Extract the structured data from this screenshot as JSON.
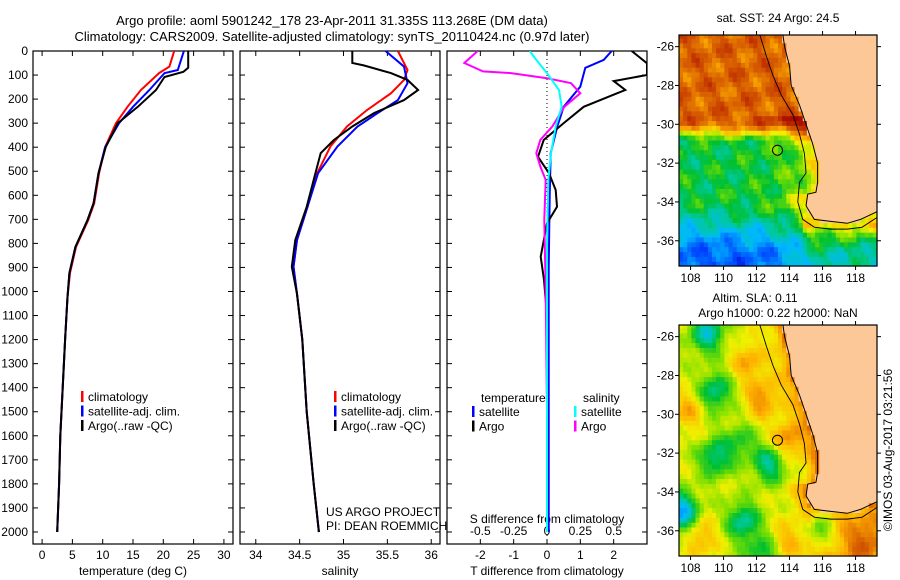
{
  "title": {
    "line1": "Argo profile: aoml 5901242_178 23-Apr-2011 31.335S 113.268E (DM data)",
    "line2": "Climatology: CARS2009. Satellite-adjusted climatology: synTS_20110424.nc (0.97d later)"
  },
  "depth_axis": {
    "ticks": [
      0,
      100,
      200,
      300,
      400,
      500,
      600,
      700,
      800,
      900,
      1000,
      1100,
      1200,
      1300,
      1400,
      1500,
      1600,
      1700,
      1800,
      1900,
      2000
    ],
    "ylim": [
      2050,
      0
    ]
  },
  "chart_data": [
    {
      "type": "line",
      "name": "temperature-profile",
      "xlabel": "temperature (deg C)",
      "xlim": [
        -1.5,
        31.5
      ],
      "xticks": [
        0,
        5,
        10,
        15,
        20,
        25,
        30
      ],
      "legend": [
        "climatology",
        "satellite-adj. clim.",
        "Argo(..raw -QC)"
      ],
      "series": [
        {
          "name": "climatology",
          "color": "#ff0000",
          "depth": [
            0,
            65,
            92,
            162,
            232,
            300,
            400,
            508,
            633,
            703,
            815,
            923,
            1023,
            1200,
            1400,
            1600,
            1800,
            2000
          ],
          "values": [
            21.8,
            21,
            19.3,
            16.3,
            14.1,
            12.2,
            10.4,
            9.4,
            8.6,
            7.6,
            5.6,
            4.6,
            4.2,
            3.8,
            3.4,
            3.0,
            2.8,
            2.5
          ]
        },
        {
          "name": "satellite-adj. clim.",
          "color": "#0000ff",
          "depth": [
            0,
            79,
            92,
            162,
            232,
            300,
            400,
            508,
            633,
            703,
            815,
            923,
            1023,
            1200,
            1400,
            1600,
            1800,
            2000
          ],
          "values": [
            23.4,
            22.4,
            20.2,
            17.7,
            15,
            12.7,
            10.4,
            9.3,
            8.5,
            7.5,
            5.5,
            4.5,
            4.2,
            3.8,
            3.4,
            3.0,
            2.8,
            2.5
          ]
        },
        {
          "name": "Argo(..raw -QC)",
          "color": "#000000",
          "depth": [
            0,
            50,
            70,
            87,
            108,
            162,
            232,
            300,
            400,
            508,
            633,
            703,
            815,
            923,
            1023,
            1200,
            1400,
            1600,
            1800,
            2000
          ],
          "values": [
            24.1,
            24.1,
            24.1,
            23.3,
            20.2,
            18.8,
            15.8,
            12.5,
            10.5,
            9.3,
            8.5,
            7.5,
            5.5,
            4.5,
            4.2,
            3.8,
            3.4,
            3.0,
            2.8,
            2.5
          ]
        }
      ]
    },
    {
      "type": "line",
      "name": "salinity-profile",
      "xlabel": "salinity",
      "xlim": [
        33.82,
        36.1
      ],
      "xticks": [
        34,
        34.5,
        35,
        35.5,
        36
      ],
      "legend": [
        "climatology",
        "satellite-adj. clim.",
        "Argo(..raw -QC)"
      ],
      "annotation": [
        "US ARGO PROJECT",
        "PI: DEAN ROEMMICH"
      ],
      "series": [
        {
          "name": "climatology",
          "color": "#ff0000",
          "depth": [
            0,
            79,
            120,
            176,
            245,
            314,
            397,
            508,
            648,
            786,
            897,
            1010,
            1200,
            1500,
            1800,
            2000
          ],
          "values": [
            35.62,
            35.73,
            35.69,
            35.54,
            35.27,
            35.04,
            34.85,
            34.7,
            34.59,
            34.47,
            34.43,
            34.47,
            34.53,
            34.58,
            34.66,
            34.72
          ]
        },
        {
          "name": "satellite-adj. clim.",
          "color": "#0000ff",
          "depth": [
            0,
            65,
            134,
            204,
            258,
            314,
            397,
            508,
            648,
            786,
            897,
            1010,
            1200,
            1500,
            1800,
            2000
          ],
          "values": [
            35.48,
            35.69,
            35.73,
            35.62,
            35.39,
            35.16,
            34.93,
            34.71,
            34.59,
            34.47,
            34.43,
            34.47,
            34.53,
            34.58,
            34.66,
            34.72
          ]
        },
        {
          "name": "Argo(..raw -QC)",
          "color": "#000000",
          "depth": [
            0,
            50,
            60,
            92,
            120,
            162,
            204,
            258,
            314,
            370,
            425,
            508,
            648,
            786,
            897,
            1010,
            1200,
            1500,
            1800,
            2000
          ],
          "values": [
            35.1,
            35.1,
            35.23,
            35.54,
            35.73,
            35.85,
            35.69,
            35.35,
            35.1,
            34.89,
            34.74,
            34.68,
            34.58,
            34.45,
            34.41,
            34.47,
            34.53,
            34.58,
            34.66,
            34.72
          ]
        }
      ]
    },
    {
      "type": "line",
      "name": "difference-profile",
      "xlabel": "T difference from climatology",
      "xlabel2": "S difference from climatology",
      "xlim": [
        -3,
        3
      ],
      "xticks": [
        -2,
        -1,
        0,
        1,
        2
      ],
      "s_xticks": [
        "-0.5",
        "-0.25",
        "0",
        "0.25",
        "0.5"
      ],
      "s_scale": 0.25,
      "legend_groups": [
        {
          "title": "temperature",
          "items": [
            {
              "label": "satellite",
              "color": "#0000ff"
            },
            {
              "label": "Argo",
              "color": "#000000"
            }
          ]
        },
        {
          "title": "salinity",
          "items": [
            {
              "label": "satellite",
              "color": "#00ffff"
            },
            {
              "label": "Argo",
              "color": "#ff00ff"
            }
          ]
        }
      ],
      "series": [
        {
          "name": "T satellite",
          "color": "#0000ff",
          "units": "T",
          "depth": [
            0,
            37,
            70,
            148,
            232,
            314,
            425,
            600,
            900,
            1200,
            1500,
            1800,
            2000
          ],
          "values": [
            1.94,
            1.7,
            1.15,
            1.0,
            0.5,
            0.31,
            0.11,
            0.08,
            0.05,
            0.05,
            0.05,
            0.05,
            0.05
          ]
        },
        {
          "name": "T Argo",
          "color": "#000000",
          "units": "T",
          "depth": [
            0,
            51,
            100,
            125,
            162,
            176,
            232,
            300,
            370,
            440,
            508,
            578,
            648,
            717,
            855,
            952,
            1100,
            1300,
            1600,
            2000
          ],
          "values": [
            2.54,
            3.0,
            3.0,
            2.0,
            2.35,
            2.1,
            1.1,
            0.5,
            -0.1,
            -0.27,
            0.06,
            0.26,
            0.3,
            0,
            -0.19,
            -0.09,
            0,
            0,
            0,
            0
          ]
        },
        {
          "name": "S Argo",
          "color": "#ff00ff",
          "units": "S",
          "depth": [
            0,
            50,
            85,
            92,
            113,
            134,
            176,
            232,
            314,
            370,
            425,
            480,
            536,
            700,
            1000,
            1500,
            2000
          ],
          "values": [
            -0.52,
            -0.62,
            -0.48,
            -0.27,
            0,
            0.18,
            0.25,
            0.13,
            0.04,
            -0.05,
            -0.08,
            -0.05,
            -0.01,
            -0.02,
            -0.01,
            0,
            0
          ]
        },
        {
          "name": "S satellite",
          "color": "#00ffff",
          "units": "S",
          "depth": [
            0,
            37,
            92,
            162,
            232,
            314,
            425,
            536,
            800,
            1200,
            2000
          ],
          "values": [
            -0.13,
            -0.08,
            0,
            0.09,
            0.11,
            0.065,
            0.03,
            0.01,
            0,
            0,
            0
          ]
        }
      ]
    }
  ],
  "maps": [
    {
      "name": "sst-map",
      "title": [
        "sat. SST: 24 Argo: 24.5"
      ],
      "field": "sst",
      "lon_range": [
        107.3,
        119.3
      ],
      "lat_range": [
        -37.3,
        -25.4
      ],
      "lon_ticks": [
        108,
        110,
        112,
        114,
        116,
        118
      ],
      "lat_ticks": [
        -26,
        -28,
        -30,
        -32,
        -34,
        -36
      ],
      "argo_position": {
        "lon": 113.268,
        "lat": -31.335
      }
    },
    {
      "name": "sla-map",
      "title": [
        "Altim. SLA: 0.11",
        "Argo h1000: 0.22 h2000: NaN"
      ],
      "field": "sla",
      "lon_range": [
        107.3,
        119.3
      ],
      "lat_range": [
        -37.3,
        -25.4
      ],
      "lon_ticks": [
        108,
        110,
        112,
        114,
        116,
        118
      ],
      "lat_ticks": [
        -26,
        -28,
        -30,
        -32,
        -34,
        -36
      ],
      "argo_position": {
        "lon": 113.268,
        "lat": -31.335
      }
    }
  ],
  "colors": {
    "land": "#fdc898"
  },
  "credit": "©IMOS 03-Aug-2017 03:21:56"
}
